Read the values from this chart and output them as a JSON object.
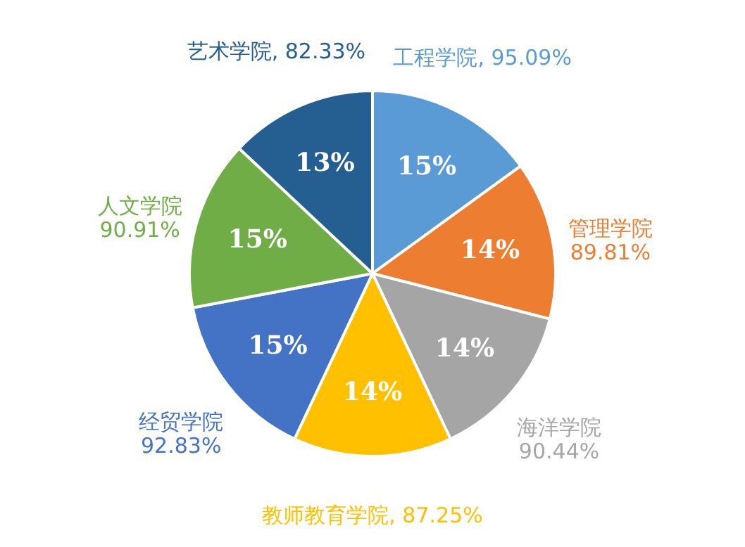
{
  "chart_data": {
    "type": "pie",
    "categories": [
      "工程学院, 95.09%",
      "管理学院\n89.81%",
      "海洋学院\n90.44%",
      "教师教育学院, 87.25%",
      "经贸学院\n92.83%",
      "人文学院\n90.91%",
      "艺术学院, 82.33%"
    ],
    "values": [
      15,
      14,
      14,
      14,
      15,
      15,
      13
    ],
    "value_labels": [
      "15%",
      "14%",
      "14%",
      "14%",
      "15%",
      "15%",
      "13%"
    ],
    "colors": [
      "#5b9bd5",
      "#ed7d31",
      "#a5a5a5",
      "#ffc000",
      "#4472c4",
      "#70ad47",
      "#255e91"
    ]
  }
}
